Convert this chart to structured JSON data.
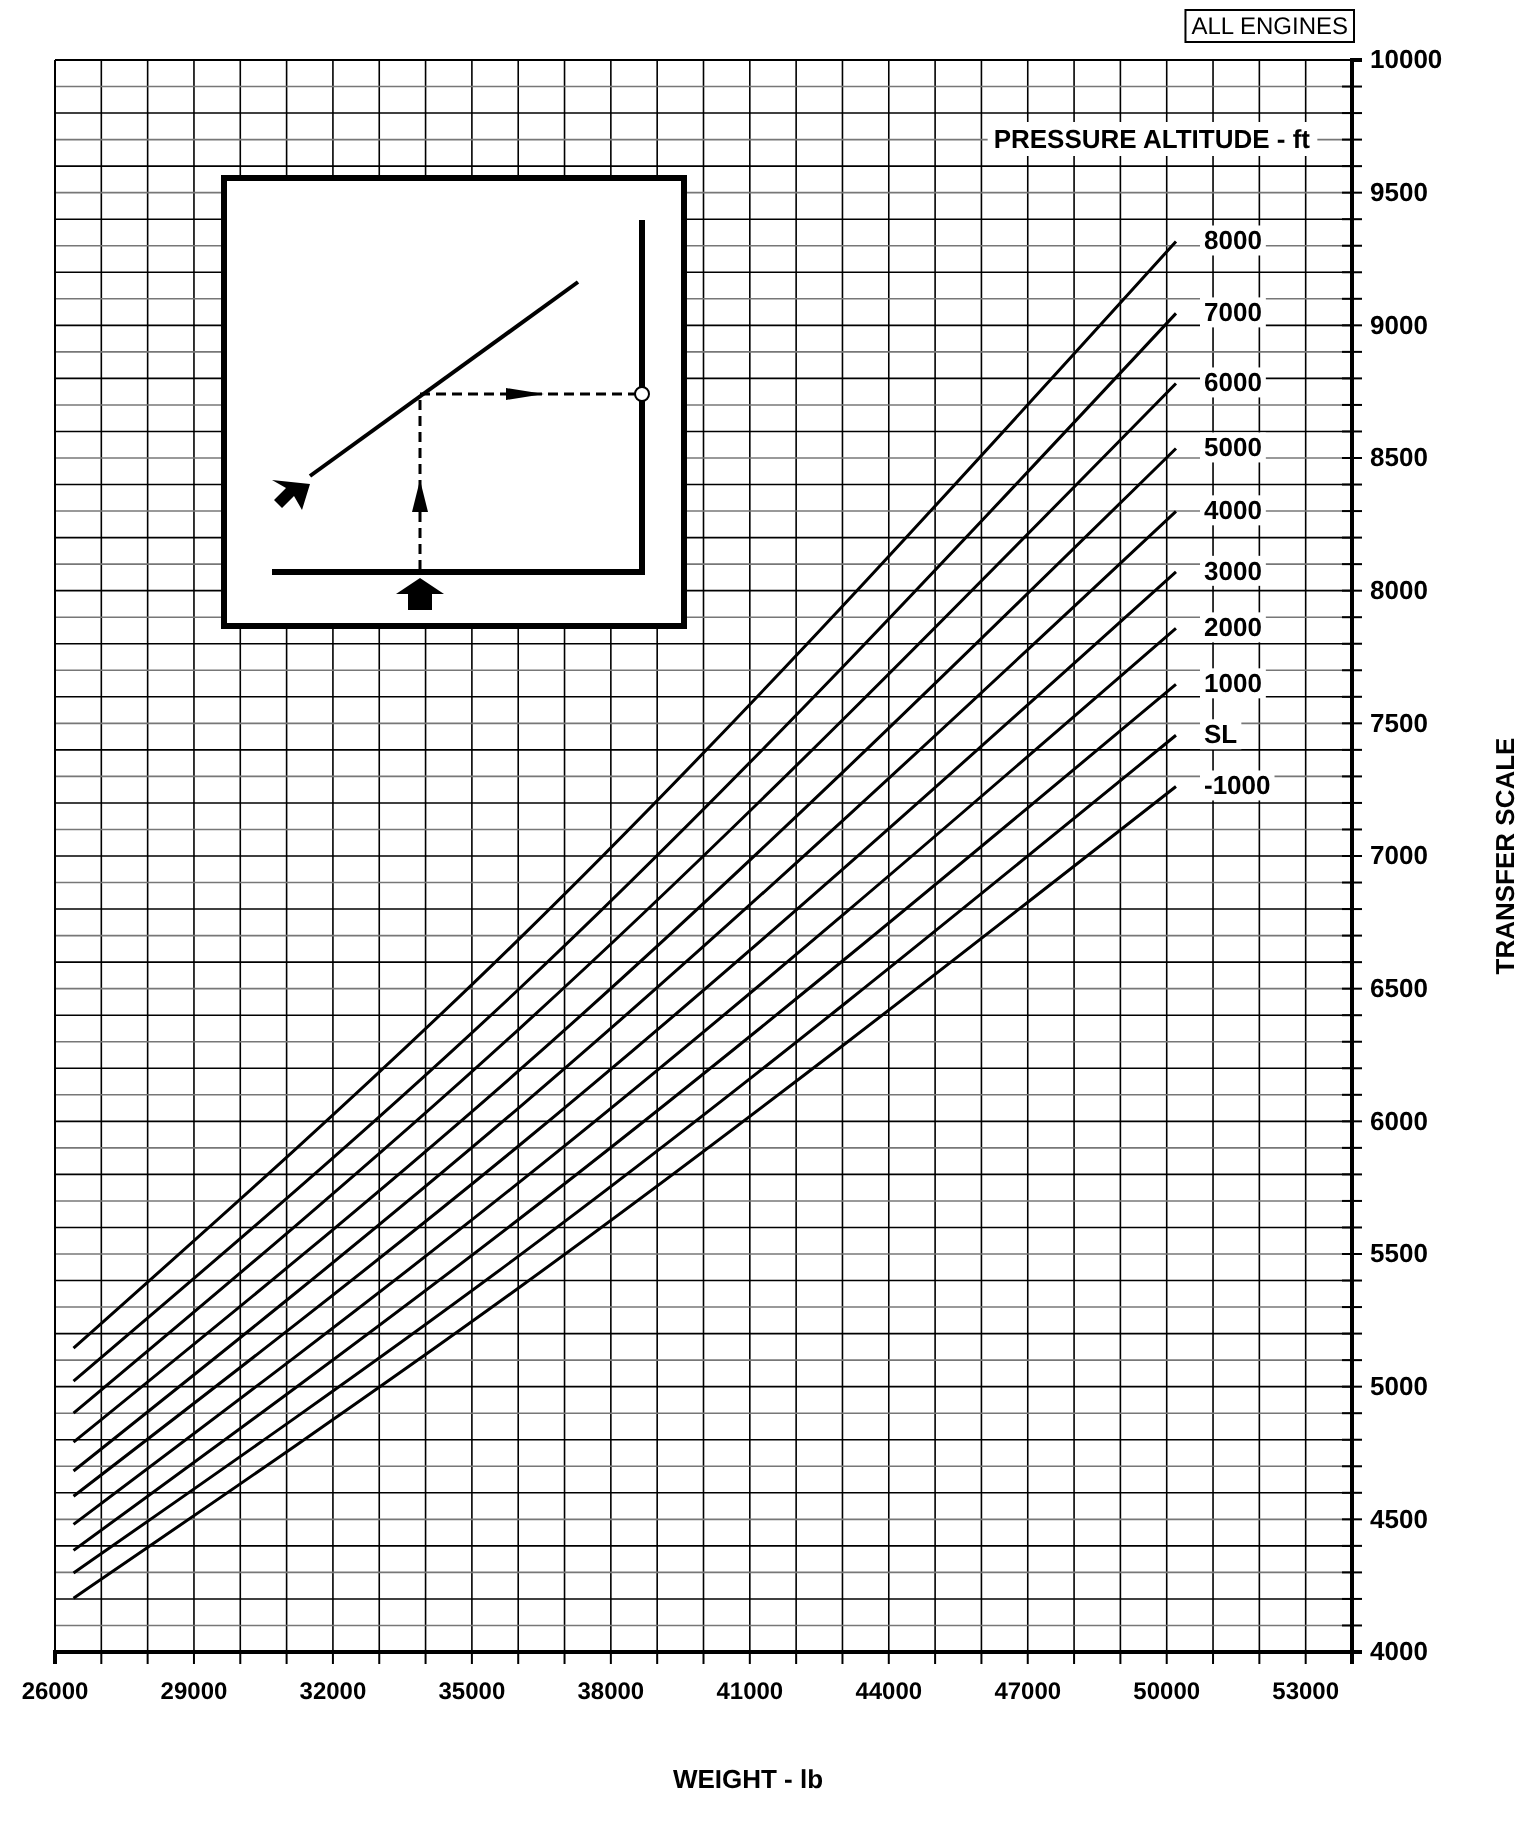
{
  "chart_data": {
    "type": "line",
    "xlabel": "WEIGHT - lb",
    "ylabel": "TRANSFER SCALE",
    "legend_title": "PRESSURE ALTITUDE - ft",
    "annotations": [
      "ALL ENGINES"
    ],
    "x": [
      26400,
      36000,
      50200
    ],
    "series": [
      {
        "name": "8000",
        "color": "#000000",
        "values": [
          5145,
          6684,
          9316
        ]
      },
      {
        "name": "7000",
        "color": "#000000",
        "values": [
          5021,
          6496,
          9045
        ]
      },
      {
        "name": "6000",
        "color": "#000000",
        "values": [
          4900,
          6345,
          8781
        ]
      },
      {
        "name": "5000",
        "color": "#000000",
        "values": [
          4791,
          6189,
          8536
        ]
      },
      {
        "name": "4000",
        "color": "#000000",
        "values": [
          4682,
          6049,
          8299
        ]
      },
      {
        "name": "3000",
        "color": "#000000",
        "values": [
          4587,
          5906,
          8071
        ]
      },
      {
        "name": "2000",
        "color": "#000000",
        "values": [
          4481,
          5767,
          7858
        ]
      },
      {
        "name": "1000",
        "color": "#000000",
        "values": [
          4383,
          5629,
          7647
        ]
      },
      {
        "name": "SL",
        "color": "#000000",
        "values": [
          4298,
          5491,
          7455
        ]
      },
      {
        "name": "-1000",
        "color": "#000000",
        "values": [
          4203,
          5371,
          7262
        ]
      }
    ],
    "xlim": [
      26000,
      54000
    ],
    "ylim": [
      4000,
      10000
    ],
    "xticks": [
      26000,
      {
        "value": 27000,
        "label": null
      },
      {
        "value": 28000,
        "label": null
      },
      29000,
      {
        "value": 30000,
        "label": null
      },
      {
        "value": 31000,
        "label": null
      },
      32000,
      {
        "value": 33000,
        "label": null
      },
      {
        "value": 34000,
        "label": null
      },
      35000,
      {
        "value": 36000,
        "label": null
      },
      {
        "value": 37000,
        "label": null
      },
      38000,
      {
        "value": 39000,
        "label": null
      },
      {
        "value": 40000,
        "label": null
      },
      41000,
      {
        "value": 42000,
        "label": null
      },
      {
        "value": 43000,
        "label": null
      },
      44000,
      {
        "value": 45000,
        "label": null
      },
      {
        "value": 46000,
        "label": null
      },
      47000,
      {
        "value": 48000,
        "label": null
      },
      {
        "value": 49000,
        "label": null
      },
      50000,
      {
        "value": 51000,
        "label": null
      },
      {
        "value": 52000,
        "label": null
      },
      53000
    ],
    "yticks": [
      4000,
      {
        "value": 4100,
        "label": null
      },
      {
        "value": 4200,
        "label": null
      },
      {
        "value": 4300,
        "label": null
      },
      {
        "value": 4400,
        "label": null
      },
      4500,
      {
        "value": 4600,
        "label": null
      },
      {
        "value": 4700,
        "label": null
      },
      {
        "value": 4800,
        "label": null
      },
      {
        "value": 4900,
        "label": null
      },
      5000,
      {
        "value": 5100,
        "label": null
      },
      {
        "value": 5200,
        "label": null
      },
      {
        "value": 5300,
        "label": null
      },
      {
        "value": 5400,
        "label": null
      },
      5500,
      {
        "value": 5600,
        "label": null
      },
      {
        "value": 5700,
        "label": null
      },
      {
        "value": 5800,
        "label": null
      },
      {
        "value": 5900,
        "label": null
      },
      6000,
      {
        "value": 6100,
        "label": null
      },
      {
        "value": 6200,
        "label": null
      },
      {
        "value": 6300,
        "label": null
      },
      {
        "value": 6400,
        "label": null
      },
      6500,
      {
        "value": 6600,
        "label": null
      },
      {
        "value": 6700,
        "label": null
      },
      {
        "value": 6800,
        "label": null
      },
      {
        "value": 6900,
        "label": null
      },
      7000,
      {
        "value": 7100,
        "label": null
      },
      {
        "value": 7200,
        "label": null
      },
      {
        "value": 7300,
        "label": null
      },
      {
        "value": 7400,
        "label": null
      },
      7500,
      {
        "value": 7600,
        "label": null
      },
      {
        "value": 7700,
        "label": null
      },
      {
        "value": 7800,
        "label": null
      },
      {
        "value": 7900,
        "label": null
      },
      8000,
      {
        "value": 8100,
        "label": null
      },
      {
        "value": 8200,
        "label": null
      },
      {
        "value": 8300,
        "label": null
      },
      {
        "value": 8400,
        "label": null
      },
      8500,
      {
        "value": 8600,
        "label": null
      },
      {
        "value": 8700,
        "label": null
      },
      {
        "value": 8800,
        "label": null
      },
      {
        "value": 8900,
        "label": null
      },
      9000,
      {
        "value": 9100,
        "label": null
      },
      {
        "value": 9200,
        "label": null
      },
      {
        "value": 9300,
        "label": null
      },
      {
        "value": 9400,
        "label": null
      },
      9500,
      {
        "value": 9600,
        "label": null
      },
      {
        "value": 9700,
        "label": null
      },
      {
        "value": 9800,
        "label": null
      },
      {
        "value": 9900,
        "label": null
      },
      10000
    ],
    "grid": true,
    "marker": "none",
    "line_style": "solid"
  }
}
